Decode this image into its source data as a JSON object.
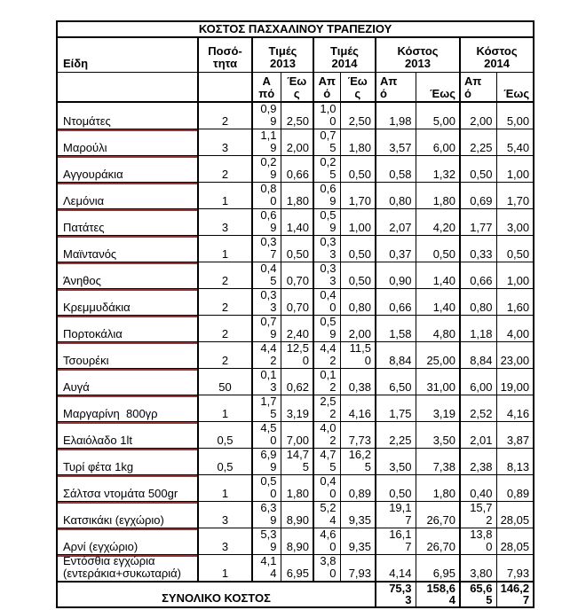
{
  "table": {
    "title": "ΚΟΣΤΟΣ ΠΑΣΧΑΛΙΝΟΥ ΤΡΑΠΕΖΙΟΥ",
    "columns": {
      "items_label": "Είδη",
      "quantity_label": "Ποσό-\nτητα",
      "groups": [
        {
          "label": "Τιμές\n2013",
          "sub": [
            "Α\nπό",
            "Έω\nς"
          ]
        },
        {
          "label": "Τιμές\n2014",
          "sub": [
            "Απ\nό",
            "Έω\nς"
          ]
        },
        {
          "label": "Κόστος\n2013",
          "sub": [
            "Απ\nό",
            "Έως"
          ]
        },
        {
          "label": "Κόστος\n2014",
          "sub": [
            "Απ\nό",
            "Έως"
          ]
        }
      ]
    },
    "rows": [
      {
        "item": "Ντομάτες",
        "quantity": "2",
        "values": [
          "0,9\n9",
          "2,50",
          "1,0\n0",
          "2,50",
          "1,98",
          "5,00",
          "2,00",
          "5,00"
        ]
      },
      {
        "item": "Μαρούλι",
        "quantity": "3",
        "values": [
          "1,1\n9",
          "2,00",
          "0,7\n5",
          "1,80",
          "3,57",
          "6,00",
          "2,25",
          "5,40"
        ]
      },
      {
        "item": "Αγγουράκια",
        "quantity": "2",
        "values": [
          "0,2\n9",
          "0,66",
          "0,2\n5",
          "0,50",
          "0,58",
          "1,32",
          "0,50",
          "1,00"
        ]
      },
      {
        "item": "Λεμόνια",
        "quantity": "1",
        "values": [
          "0,8\n0",
          "1,80",
          "0,6\n9",
          "1,70",
          "0,80",
          "1,80",
          "0,69",
          "1,70"
        ]
      },
      {
        "item": "Πατάτες",
        "quantity": "3",
        "values": [
          "0,6\n9",
          "1,40",
          "0,5\n9",
          "1,00",
          "2,07",
          "4,20",
          "1,77",
          "3,00"
        ]
      },
      {
        "item": "Μαϊντανός",
        "quantity": "1",
        "values": [
          "0,3\n7",
          "0,50",
          "0,3\n3",
          "0,50",
          "0,37",
          "0,50",
          "0,33",
          "0,50"
        ]
      },
      {
        "item": "Άνηθος",
        "quantity": "2",
        "values": [
          "0,4\n5",
          "0,70",
          "0,3\n3",
          "0,50",
          "0,90",
          "1,40",
          "0,66",
          "1,00"
        ]
      },
      {
        "item": "Κρεμμυδάκια",
        "quantity": "2",
        "values": [
          "0,3\n3",
          "0,70",
          "0,4\n0",
          "0,80",
          "0,66",
          "1,40",
          "0,80",
          "1,60"
        ]
      },
      {
        "item": "Πορτοκάλια",
        "quantity": "2",
        "values": [
          "0,7\n9",
          "2,40",
          "0,5\n9",
          "2,00",
          "1,58",
          "4,80",
          "1,18",
          "4,00"
        ]
      },
      {
        "item": "Τσουρέκι",
        "quantity": "2",
        "values": [
          "4,4\n2",
          "12,5\n0",
          "4,4\n2",
          "11,5\n0",
          "8,84",
          "25,00",
          "8,84",
          "23,00"
        ]
      },
      {
        "item": "Αυγά",
        "quantity": "50",
        "values": [
          "0,1\n3",
          "0,62",
          "0,1\n2",
          "0,38",
          "6,50",
          "31,00",
          "6,00",
          "19,00"
        ]
      },
      {
        "item": "Μαργαρίνη  800γρ",
        "quantity": "1",
        "values": [
          "1,7\n5",
          "3,19",
          "2,5\n2",
          "4,16",
          "1,75",
          "3,19",
          "2,52",
          "4,16"
        ]
      },
      {
        "item": "Ελαιόλαδο 1lt",
        "quantity": "0,5",
        "values": [
          "4,5\n0",
          "7,00",
          "4,0\n2",
          "7,73",
          "2,25",
          "3,50",
          "2,01",
          "3,87"
        ]
      },
      {
        "item": "Τυρί φέτα 1kg",
        "quantity": "0,5",
        "values": [
          "6,9\n9",
          "14,7\n5",
          "4,7\n5",
          "16,2\n5",
          "3,50",
          "7,38",
          "2,38",
          "8,13"
        ]
      },
      {
        "item": "Σάλτσα ντομάτα 500gr",
        "quantity": "1",
        "values": [
          "0,5\n0",
          "1,80",
          "0,4\n0",
          "0,89",
          "0,50",
          "1,80",
          "0,40",
          "0,89"
        ]
      },
      {
        "item": "Κατσικάκι (εγχώριο)",
        "quantity": "3",
        "values": [
          "6,3\n9",
          "8,90",
          "5,2\n4",
          "9,35",
          "19,1\n7",
          "26,70",
          "15,7\n2",
          "28,05"
        ]
      },
      {
        "item": "Αρνί (εγχώριο)",
        "quantity": "3",
        "values": [
          "5,3\n9",
          "8,90",
          "4,6\n0",
          "9,35",
          "16,1\n7",
          "26,70",
          "13,8\n0",
          "28,05"
        ]
      },
      {
        "item": "Εντόσθια εγχώρια\n(εντεράκια+συκωταριά)",
        "quantity": "1",
        "values": [
          "4,1\n4",
          "6,95",
          "3,8\n0",
          "7,93",
          "4,14",
          "6,95",
          "3,80",
          "7,93"
        ]
      }
    ],
    "footer": {
      "label": "ΣΥΝΟΛΙΚΟ ΚΟΣΤΟΣ",
      "totals": [
        "75,3\n3",
        "158,6\n4",
        "65,6\n5",
        "146,2\n7"
      ]
    }
  },
  "colors": {
    "grid": "#000000",
    "text": "#000000",
    "item_underline": "#943634",
    "background": "#ffffff"
  }
}
